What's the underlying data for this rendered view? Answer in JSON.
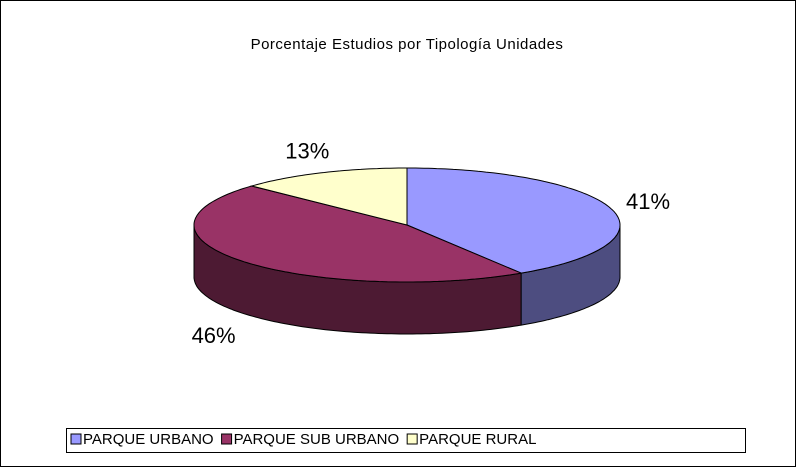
{
  "chart_data": {
    "type": "pie",
    "title": "Porcentaje Estudios por Tipología Unidades",
    "categories": [
      "PARQUE URBANO",
      "PARQUE SUB URBANO",
      "PARQUE RURAL"
    ],
    "values": [
      41,
      46,
      13
    ],
    "value_labels": [
      "41%",
      "46%",
      "13%"
    ],
    "colors": [
      "#9999ff",
      "#993366",
      "#ffffcc"
    ],
    "legend": "bottom"
  }
}
